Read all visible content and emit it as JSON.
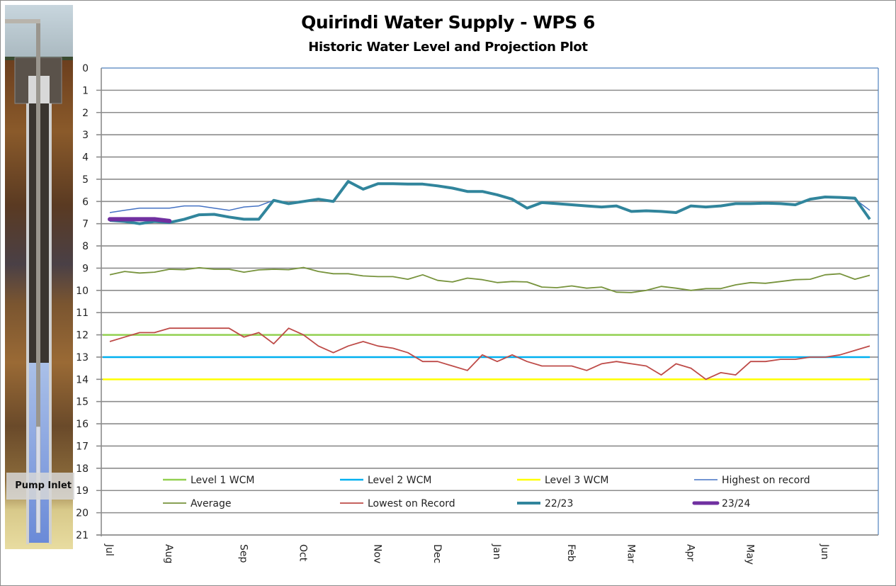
{
  "chart_data": {
    "type": "line",
    "title": "Quirindi Water Supply - WPS 6",
    "subtitle": "Historic Water Level and Projection Plot",
    "xlabel": "",
    "ylabel": "",
    "ylim": [
      21,
      0
    ],
    "y_inverted": true,
    "y_ticks": [
      0,
      1,
      2,
      3,
      4,
      5,
      6,
      7,
      8,
      9,
      10,
      11,
      12,
      13,
      14,
      15,
      16,
      17,
      18,
      19,
      20,
      21
    ],
    "grid": true,
    "x_tick_labels": [
      "Jul",
      "Aug",
      "Sep",
      "Oct",
      "Nov",
      "Dec",
      "Jan",
      "Feb",
      "Mar",
      "Apr",
      "May",
      "Jun"
    ],
    "x_tick_week_index": [
      0,
      4,
      9,
      13,
      18,
      22,
      26,
      31,
      35,
      39,
      43,
      48
    ],
    "x_weeks": 52,
    "legend_position": "bottom-inside",
    "series": [
      {
        "name": "Level 1 WCM",
        "color": "#92d050",
        "kind": "constant",
        "value": 12
      },
      {
        "name": "Level 2 WCM",
        "color": "#00b0f0",
        "kind": "constant",
        "value": 13
      },
      {
        "name": "Level 3 WCM",
        "color": "#ffff00",
        "kind": "constant",
        "value": 14
      },
      {
        "name": "Highest on record",
        "color": "#4472c4",
        "kind": "line",
        "values": [
          6.5,
          6.4,
          6.3,
          6.3,
          6.3,
          6.2,
          6.2,
          6.3,
          6.4,
          6.25,
          6.2,
          5.95,
          6.1,
          6.0,
          5.9,
          6.0,
          5.1,
          5.45,
          5.2,
          5.2,
          5.22,
          5.22,
          5.3,
          5.4,
          5.55,
          5.55,
          5.7,
          5.9,
          6.3,
          6.05,
          6.1,
          6.15,
          6.2,
          6.25,
          6.2,
          6.45,
          6.42,
          6.45,
          6.5,
          6.2,
          6.25,
          6.2,
          6.1,
          6.1,
          6.08,
          6.1,
          6.15,
          5.9,
          5.8,
          5.85,
          5.9,
          6.4
        ]
      },
      {
        "name": "Average",
        "color": "#77933c",
        "kind": "line",
        "values": [
          9.3,
          9.15,
          9.22,
          9.18,
          9.05,
          9.07,
          8.98,
          9.05,
          9.05,
          9.18,
          9.08,
          9.05,
          9.07,
          8.97,
          9.15,
          9.25,
          9.25,
          9.35,
          9.38,
          9.38,
          9.5,
          9.3,
          9.55,
          9.62,
          9.45,
          9.52,
          9.65,
          9.6,
          9.62,
          9.85,
          9.88,
          9.8,
          9.9,
          9.85,
          10.08,
          10.1,
          10.0,
          9.82,
          9.9,
          10.0,
          9.92,
          9.92,
          9.75,
          9.65,
          9.68,
          9.6,
          9.52,
          9.5,
          9.3,
          9.25,
          9.5,
          9.32
        ]
      },
      {
        "name": "Lowest on Record",
        "color": "#be4b48",
        "kind": "line",
        "values": [
          12.3,
          12.1,
          11.9,
          11.9,
          11.7,
          11.7,
          11.7,
          11.7,
          11.7,
          12.1,
          11.9,
          12.4,
          11.7,
          12.0,
          12.5,
          12.8,
          12.5,
          12.3,
          12.5,
          12.6,
          12.8,
          13.2,
          13.2,
          13.4,
          13.6,
          12.9,
          13.2,
          12.9,
          13.2,
          13.4,
          13.4,
          13.4,
          13.6,
          13.3,
          13.2,
          13.3,
          13.4,
          13.8,
          13.3,
          13.5,
          14.0,
          13.7,
          13.8,
          13.2,
          13.2,
          13.1,
          13.1,
          13.0,
          13.0,
          12.9,
          12.7,
          12.5
        ]
      },
      {
        "name": "22/23",
        "color": "#31859c",
        "kind": "line",
        "values": [
          6.85,
          6.9,
          7.0,
          6.9,
          6.95,
          6.8,
          6.6,
          6.58,
          6.7,
          6.8,
          6.8,
          5.95,
          6.1,
          6.0,
          5.9,
          6.0,
          5.1,
          5.45,
          5.2,
          5.2,
          5.22,
          5.22,
          5.3,
          5.4,
          5.55,
          5.55,
          5.7,
          5.9,
          6.3,
          6.05,
          6.1,
          6.15,
          6.2,
          6.25,
          6.2,
          6.45,
          6.42,
          6.45,
          6.5,
          6.2,
          6.25,
          6.2,
          6.1,
          6.1,
          6.08,
          6.1,
          6.15,
          5.9,
          5.8,
          5.82,
          5.85,
          6.8
        ]
      },
      {
        "name": "23/24",
        "color": "#7030a0",
        "kind": "line",
        "values": [
          6.8,
          6.8,
          6.8,
          6.8,
          6.88
        ]
      }
    ]
  },
  "illustration": {
    "label": "Pump Inlet"
  }
}
